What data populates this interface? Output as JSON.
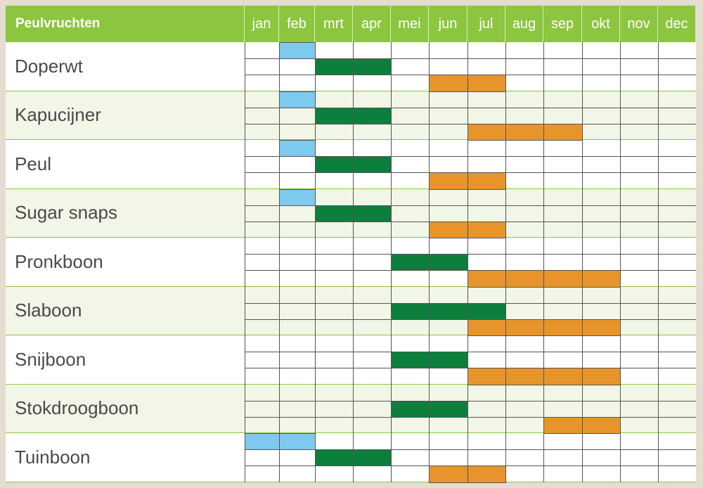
{
  "colors": {
    "header": "#8cc63f",
    "sow_indoor": "#7dcaf0",
    "sow_outdoor": "#0d7f3c",
    "harvest": "#e7952a"
  },
  "chart_data": {
    "type": "table",
    "title": "Peulvruchten",
    "months": [
      "jan",
      "feb",
      "mrt",
      "apr",
      "mei",
      "jun",
      "jul",
      "aug",
      "sep",
      "okt",
      "nov",
      "dec"
    ],
    "rows": [
      {
        "name": "Doperwt",
        "blue": [
          2
        ],
        "green": [
          3,
          4
        ],
        "orange": [
          6,
          7
        ]
      },
      {
        "name": "Kapucijner",
        "blue": [
          2
        ],
        "green": [
          3,
          4
        ],
        "orange": [
          7,
          8,
          9
        ]
      },
      {
        "name": "Peul",
        "blue": [
          2
        ],
        "green": [
          3,
          4
        ],
        "orange": [
          6,
          7
        ]
      },
      {
        "name": "Sugar snaps",
        "blue": [
          2
        ],
        "green": [
          3,
          4
        ],
        "orange": [
          6,
          7
        ]
      },
      {
        "name": "Pronkboon",
        "blue": [],
        "green": [
          5,
          6
        ],
        "orange": [
          7,
          8,
          9,
          10
        ]
      },
      {
        "name": "Slaboon",
        "blue": [],
        "green": [
          5,
          6,
          7
        ],
        "orange": [
          7,
          8,
          9,
          10
        ]
      },
      {
        "name": "Snijboon",
        "blue": [],
        "green": [
          5,
          6
        ],
        "orange": [
          7,
          8,
          9,
          10
        ]
      },
      {
        "name": "Stokdroogboon",
        "blue": [],
        "green": [
          5,
          6
        ],
        "orange": [
          9,
          10
        ]
      },
      {
        "name": "Tuinboon",
        "blue": [
          1,
          2
        ],
        "green": [
          3,
          4
        ],
        "orange": [
          6,
          7
        ]
      }
    ]
  }
}
